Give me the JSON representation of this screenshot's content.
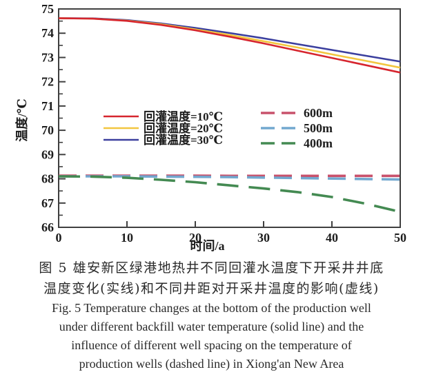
{
  "figure": {
    "caption": {
      "cn_line1": "图 5  雄安新区绿港地热井不同回灌水温度下开采井井底",
      "cn_line2": "温度变化(实线)和不同井距对开采井温度的影响(虚线)",
      "en_line1": "Fig. 5  Temperature changes at the bottom of the production well",
      "en_line2": "under different backfill water temperature (solid line) and the",
      "en_line3": "influence of different well spacing on the temperature of",
      "en_line4": "production wells (dashed line) in Xiong'an New Area"
    }
  },
  "chart_data": {
    "type": "line",
    "xlabel": "时间/a",
    "ylabel": "温度/℃",
    "xlim": [
      0,
      50
    ],
    "ylim": [
      66,
      75
    ],
    "x_ticks": [
      0,
      10,
      20,
      30,
      40,
      50
    ],
    "y_ticks": [
      66,
      67,
      68,
      69,
      70,
      71,
      72,
      73,
      74,
      75
    ],
    "grid": false,
    "axis_color": "#3f3f3f",
    "x": [
      0,
      5,
      10,
      15,
      20,
      25,
      30,
      35,
      40,
      45,
      50
    ],
    "series": [
      {
        "name": "回灌温度=10℃",
        "line_style": "solid",
        "color": "#d6252e",
        "values": [
          74.62,
          74.6,
          74.51,
          74.34,
          74.12,
          73.86,
          73.58,
          73.28,
          72.98,
          72.68,
          72.38
        ]
      },
      {
        "name": "回灌温度=20℃",
        "line_style": "solid",
        "color": "#f2c63f",
        "values": [
          74.62,
          74.6,
          74.52,
          74.37,
          74.16,
          73.93,
          73.67,
          73.41,
          73.13,
          72.86,
          72.58
        ]
      },
      {
        "name": "回灌温度=30℃",
        "line_style": "solid",
        "color": "#3b3f9e",
        "values": [
          74.62,
          74.61,
          74.54,
          74.4,
          74.22,
          74.01,
          73.79,
          73.55,
          73.31,
          73.07,
          72.83
        ]
      },
      {
        "name": "600m",
        "line_style": "dashed",
        "color": "#c8516b",
        "values": [
          68.13,
          68.13,
          68.13,
          68.13,
          68.13,
          68.12,
          68.12,
          68.12,
          68.12,
          68.12,
          68.12
        ]
      },
      {
        "name": "500m",
        "line_style": "dashed",
        "color": "#72a8cf",
        "values": [
          68.1,
          68.1,
          68.1,
          68.09,
          68.08,
          68.07,
          68.05,
          68.03,
          68.01,
          67.99,
          67.97
        ]
      },
      {
        "name": "400m",
        "line_style": "dashed",
        "color": "#448a52",
        "values": [
          68.1,
          68.09,
          68.04,
          67.96,
          67.86,
          67.73,
          67.6,
          67.45,
          67.25,
          66.97,
          66.64
        ]
      }
    ],
    "legend": {
      "position": "inside-center",
      "solid_entries": [
        "回灌温度=10℃",
        "回灌温度=20℃",
        "回灌温度=30℃"
      ],
      "dashed_entries": [
        "600m",
        "500m",
        "400m"
      ]
    }
  }
}
